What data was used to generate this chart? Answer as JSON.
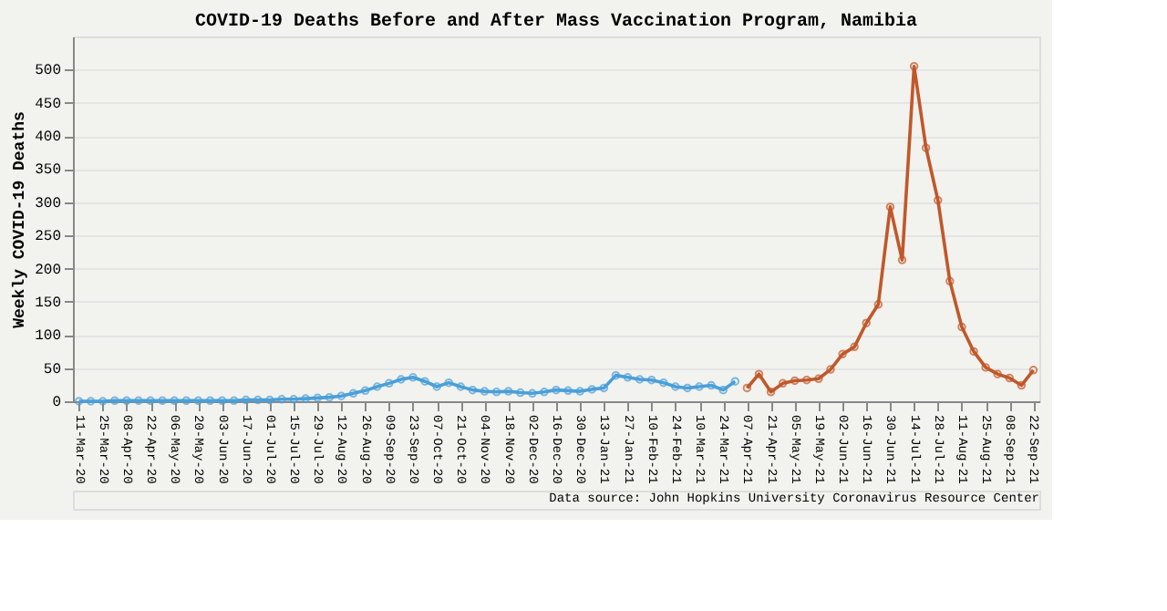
{
  "chart_data": {
    "type": "line",
    "title": "COVID-19 Deaths Before and After Mass Vaccination Program, Namibia",
    "ylabel": "Weekly COVID-19 Deaths",
    "annotations": [
      "Data source: John Hopkins University Coronavirus Resource Center"
    ],
    "categories": [
      "11-Mar-20",
      null,
      "25-Mar-20",
      null,
      "08-Apr-20",
      null,
      "22-Apr-20",
      null,
      "06-May-20",
      null,
      "20-May-20",
      null,
      "03-Jun-20",
      null,
      "17-Jun-20",
      null,
      "01-Jul-20",
      null,
      "15-Jul-20",
      null,
      "29-Jul-20",
      null,
      "12-Aug-20",
      null,
      "26-Aug-20",
      null,
      "09-Sep-20",
      null,
      "23-Sep-20",
      null,
      "07-Oct-20",
      null,
      "21-Oct-20",
      null,
      "04-Nov-20",
      null,
      "18-Nov-20",
      null,
      "02-Dec-20",
      null,
      "16-Dec-20",
      null,
      "30-Dec-20",
      null,
      "13-Jan-21",
      null,
      "27-Jan-21",
      null,
      "10-Feb-21",
      null,
      "24-Feb-21",
      null,
      "10-Mar-21",
      null,
      "24-Mar-21",
      null,
      "07-Apr-21",
      null,
      "21-Apr-21",
      null,
      "05-May-21",
      null,
      "19-May-21",
      null,
      "02-Jun-21",
      null,
      "16-Jun-21",
      null,
      "30-Jun-21",
      null,
      "14-Jul-21",
      null,
      "28-Jul-21",
      null,
      "11-Aug-21",
      null,
      "25-Aug-21",
      null,
      "08-Sep-21",
      null,
      "22-Sep-21"
    ],
    "series": [
      {
        "color": "#4a9fd8",
        "values": [
          0,
          0,
          0,
          1,
          1,
          1,
          1,
          1,
          1,
          1,
          1,
          1,
          1,
          1,
          2,
          2,
          2,
          3,
          3,
          4,
          5,
          6,
          8,
          12,
          16,
          22,
          27,
          33,
          36,
          30,
          22,
          28,
          22,
          17,
          15,
          14,
          15,
          13,
          12,
          14,
          17,
          16,
          15,
          18,
          20,
          39,
          36,
          33,
          32,
          28,
          22,
          20,
          22,
          24,
          17,
          30,
          null,
          null,
          null,
          null,
          null,
          null,
          null,
          null,
          null,
          null,
          null,
          null,
          null,
          null,
          null,
          null,
          null,
          null,
          null,
          null,
          null,
          null,
          null,
          null,
          null
        ]
      },
      {
        "color": "#c0582a",
        "values": [
          null,
          null,
          null,
          null,
          null,
          null,
          null,
          null,
          null,
          null,
          null,
          null,
          null,
          null,
          null,
          null,
          null,
          null,
          null,
          null,
          null,
          null,
          null,
          null,
          null,
          null,
          null,
          null,
          null,
          null,
          null,
          null,
          null,
          null,
          null,
          null,
          null,
          null,
          null,
          null,
          null,
          null,
          null,
          null,
          null,
          null,
          null,
          null,
          null,
          null,
          null,
          null,
          null,
          null,
          null,
          null,
          20,
          41,
          14,
          27,
          31,
          32,
          34,
          48,
          71,
          82,
          118,
          146,
          293,
          213,
          505,
          382,
          303,
          181,
          112,
          75,
          51,
          41,
          35,
          24,
          47
        ]
      }
    ],
    "ylim": [
      0,
      550
    ],
    "yticks": [
      0,
      50,
      100,
      150,
      200,
      250,
      300,
      350,
      400,
      450,
      500
    ],
    "grid": "y",
    "marker": "circle",
    "line_style": "solid"
  }
}
